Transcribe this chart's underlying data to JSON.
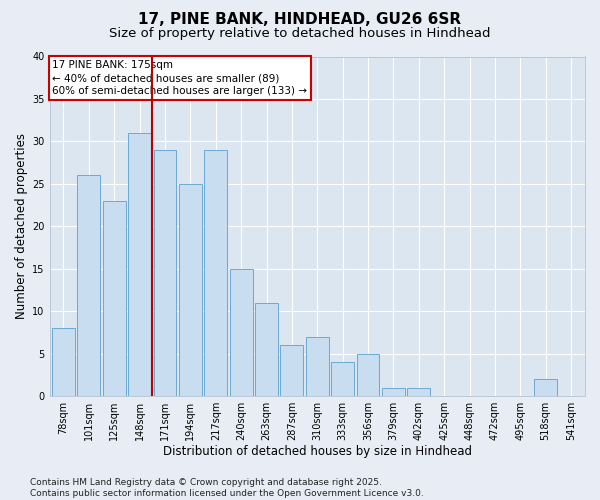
{
  "title": "17, PINE BANK, HINDHEAD, GU26 6SR",
  "subtitle": "Size of property relative to detached houses in Hindhead",
  "xlabel": "Distribution of detached houses by size in Hindhead",
  "ylabel": "Number of detached properties",
  "categories": [
    "78sqm",
    "101sqm",
    "125sqm",
    "148sqm",
    "171sqm",
    "194sqm",
    "217sqm",
    "240sqm",
    "263sqm",
    "287sqm",
    "310sqm",
    "333sqm",
    "356sqm",
    "379sqm",
    "402sqm",
    "425sqm",
    "448sqm",
    "472sqm",
    "495sqm",
    "518sqm",
    "541sqm"
  ],
  "values": [
    8,
    26,
    23,
    31,
    29,
    25,
    29,
    15,
    11,
    6,
    7,
    4,
    5,
    1,
    1,
    0,
    0,
    0,
    0,
    2,
    0
  ],
  "bar_color": "#c9ddf0",
  "bar_edge_color": "#6aaad4",
  "ylim": [
    0,
    40
  ],
  "yticks": [
    0,
    5,
    10,
    15,
    20,
    25,
    30,
    35,
    40
  ],
  "vline_x_index": 4,
  "vline_color": "#bb0000",
  "annotation_title": "17 PINE BANK: 175sqm",
  "annotation_line1": "← 40% of detached houses are smaller (89)",
  "annotation_line2": "60% of semi-detached houses are larger (133) →",
  "annotation_box_facecolor": "#ffffff",
  "annotation_box_edgecolor": "#cc0000",
  "bg_color": "#e8edf5",
  "plot_bg_color": "#dce6f0",
  "grid_color": "#ffffff",
  "footer": "Contains HM Land Registry data © Crown copyright and database right 2025.\nContains public sector information licensed under the Open Government Licence v3.0.",
  "title_fontsize": 11,
  "subtitle_fontsize": 9.5,
  "xlabel_fontsize": 8.5,
  "ylabel_fontsize": 8.5,
  "tick_fontsize": 7,
  "annotation_fontsize": 7.5,
  "footer_fontsize": 6.5
}
